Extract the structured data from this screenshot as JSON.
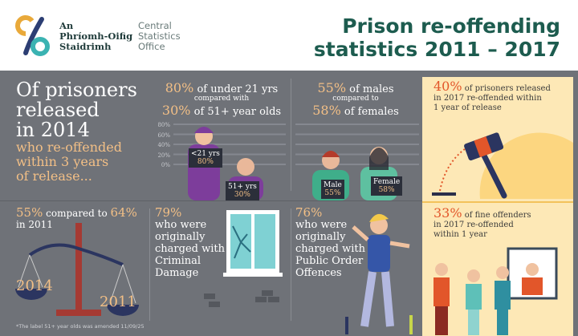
{
  "header": {
    "logo_irish": [
      "An",
      "Phríomh-Oifig",
      "Staidrimh"
    ],
    "logo_english": [
      "Central",
      "Statistics",
      "Office"
    ],
    "title_line1": "Prison re-offending",
    "title_line2": "statistics 2011 – 2017"
  },
  "intro": {
    "line1": "Of prisoners",
    "line2": "released",
    "line3": "in 2014",
    "line4": "who re-offended",
    "line5": "within 3 years",
    "line6": "of release..."
  },
  "age": {
    "pct1": "80%",
    "text1": " of under 21 yrs",
    "mid": "compared with",
    "pct2": "30%",
    "text2": " of 51+ year olds",
    "axis": [
      "80%",
      "60%",
      "40%",
      "20%",
      "0%"
    ],
    "sign1_label": "<21 yrs",
    "sign1_value": "80%",
    "sign2_label": "51+ yrs",
    "sign2_value": "30%"
  },
  "gender": {
    "pct1": "55%",
    "text1": " of males",
    "mid": "compared to",
    "pct2": "58%",
    "text2": " of females",
    "sign1_label": "Male",
    "sign1_value": "55%",
    "sign2_label": "Female",
    "sign2_value": "58%"
  },
  "release2017": {
    "pct": "40%",
    "text1": " of prisoners released",
    "text2": "in 2017 re-offended within",
    "text3": "1 year of release"
  },
  "compare": {
    "pct1": "55%",
    "mid": " compared to ",
    "pct2": "64%",
    "text": "in 2011",
    "scale_left": "2014",
    "scale_right": "2011"
  },
  "damage": {
    "pct": "79%",
    "lines": [
      "who were",
      "originally",
      "charged with",
      "Criminal",
      "Damage"
    ]
  },
  "public_order": {
    "pct": "76%",
    "lines": [
      "who were",
      "originally",
      "charged with",
      "Public Order",
      "Offences"
    ]
  },
  "fine": {
    "pct": "33%",
    "text1": " of fine offenders",
    "text2": "in 2017 re-offended",
    "text3": "within 1 year"
  },
  "footnote": "*The label 51+ year olds was amended 11/09/25",
  "colors": {
    "title": "#1d5c4f",
    "accent": "#f2bf86",
    "red": "#e2562a",
    "panel": "#6f7278",
    "highlight": "#fde8b6"
  }
}
